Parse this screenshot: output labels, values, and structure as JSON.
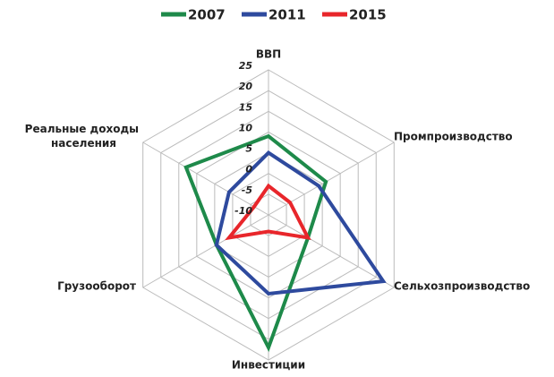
{
  "chart_data": {
    "type": "radar",
    "categories": [
      "ВВП",
      "Промпроизводство",
      "Сельхозпроизводство",
      "Инвестиции",
      "Грузооборот",
      "Реальные доходы населения"
    ],
    "series": [
      {
        "name": "2007",
        "color": "#1e8a4a",
        "values": [
          9,
          6,
          1,
          22,
          4.5,
          13
        ]
      },
      {
        "name": "2011",
        "color": "#2e4a9e",
        "values": [
          5,
          4,
          22,
          9,
          4.5,
          1
        ]
      },
      {
        "name": "2015",
        "color": "#e8262b",
        "values": [
          -3,
          -4,
          1,
          -6,
          1,
          -6
        ]
      }
    ],
    "ylim": [
      -10,
      25
    ],
    "yticks": [
      -10,
      -5,
      0,
      5,
      10,
      15,
      20,
      25
    ],
    "grid": true,
    "legend": "top"
  }
}
